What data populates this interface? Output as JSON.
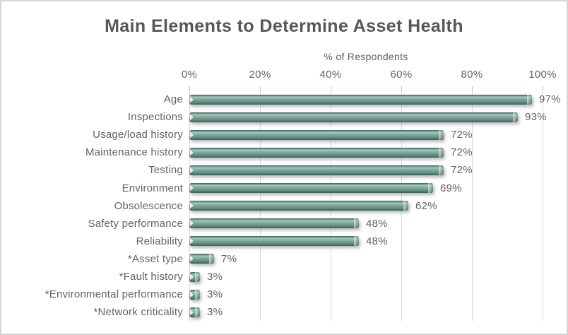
{
  "title": "Main Elements to Determine Asset Health",
  "axis": {
    "label": "% of Respondents",
    "ticks": [
      "0%",
      "20%",
      "40%",
      "60%",
      "80%",
      "100%"
    ],
    "tick_values": [
      0,
      20,
      40,
      60,
      80,
      100
    ]
  },
  "chart_data": {
    "type": "bar",
    "orientation": "horizontal",
    "title": "Main Elements to Determine Asset Health",
    "xlabel": "% of Respondents",
    "xlim": [
      0,
      100
    ],
    "grid": true,
    "categories": [
      "Age",
      "Inspections",
      "Usage/load history",
      "Maintenance history",
      "Testing",
      "Environment",
      "Obsolescence",
      "Safety performance",
      "Reliability",
      "*Asset type",
      "*Fault history",
      "*Environmental performance",
      "*Network criticality"
    ],
    "values": [
      97,
      93,
      72,
      72,
      72,
      69,
      62,
      48,
      48,
      7,
      3,
      3,
      3
    ],
    "value_labels": [
      "97%",
      "93%",
      "72%",
      "72%",
      "72%",
      "69%",
      "62%",
      "48%",
      "48%",
      "7%",
      "3%",
      "3%",
      "3%"
    ]
  },
  "colors": {
    "bar_main": "#74A097",
    "bar_highlight": "#A4C9BF",
    "bar_dark": "#3E5F57",
    "gridline": "#DADADA",
    "tick_mark": "#BFBFBF",
    "text": "#636363",
    "title_text": "#575757",
    "frame_border": "#D5D5D5"
  }
}
